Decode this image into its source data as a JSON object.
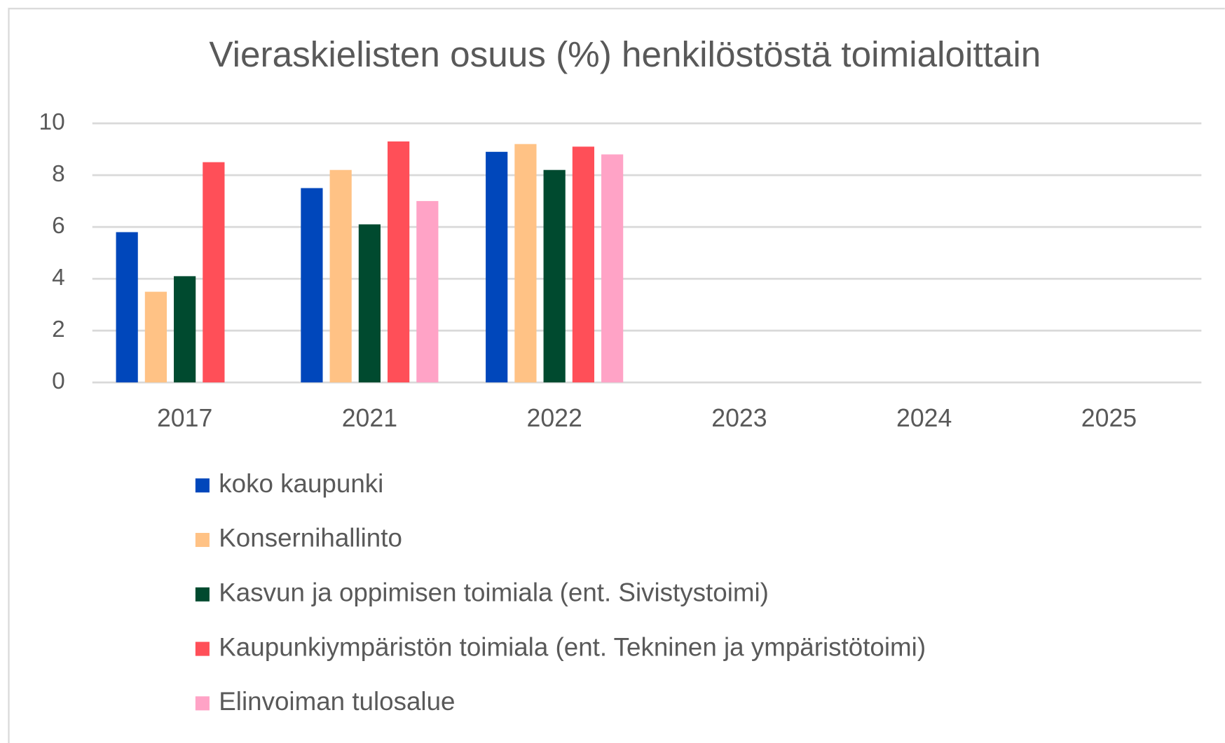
{
  "chart_data": {
    "type": "bar",
    "title": "Vieraskielisten osuus (%) henkilöstöstä toimialoittain",
    "categories": [
      "2017",
      "2021",
      "2022",
      "2023",
      "2024",
      "2025"
    ],
    "series": [
      {
        "name": "koko kaupunki",
        "color": "#0047bb",
        "values": [
          5.8,
          7.5,
          8.9,
          null,
          null,
          null
        ]
      },
      {
        "name": "Konsernihallinto",
        "color": "#ffc285",
        "values": [
          3.5,
          8.2,
          9.2,
          null,
          null,
          null
        ]
      },
      {
        "name": "Kasvun ja oppimisen toimiala (ent. Sivistystoimi)",
        "color": "#004a2f",
        "values": [
          4.1,
          6.1,
          8.2,
          null,
          null,
          null
        ]
      },
      {
        "name": "Kaupunkiympäristön toimiala (ent. Tekninen ja ympäristötoimi)",
        "color": "#ff4f58",
        "values": [
          8.5,
          9.3,
          9.1,
          null,
          null,
          null
        ]
      },
      {
        "name": "Elinvoiman tulosalue",
        "color": "#ffa3c6",
        "values": [
          null,
          7.0,
          8.8,
          null,
          null,
          null
        ]
      }
    ],
    "ylim": [
      0,
      10
    ],
    "yticks": [
      0,
      2,
      4,
      6,
      8,
      10
    ],
    "grid": true,
    "legend": "bottom"
  }
}
